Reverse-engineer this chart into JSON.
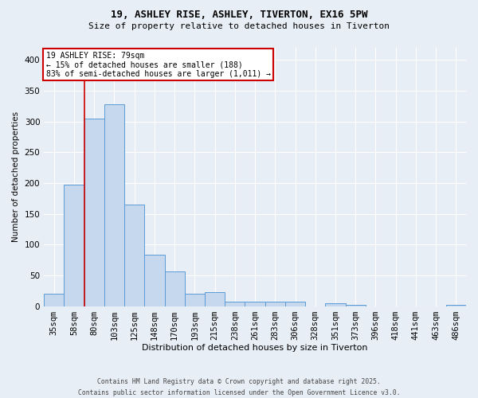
{
  "title_line1": "19, ASHLEY RISE, ASHLEY, TIVERTON, EX16 5PW",
  "title_line2": "Size of property relative to detached houses in Tiverton",
  "xlabel": "Distribution of detached houses by size in Tiverton",
  "ylabel": "Number of detached properties",
  "categories": [
    "35sqm",
    "58sqm",
    "80sqm",
    "103sqm",
    "125sqm",
    "148sqm",
    "170sqm",
    "193sqm",
    "215sqm",
    "238sqm",
    "261sqm",
    "283sqm",
    "306sqm",
    "328sqm",
    "351sqm",
    "373sqm",
    "396sqm",
    "418sqm",
    "441sqm",
    "463sqm",
    "486sqm"
  ],
  "values": [
    20,
    197,
    305,
    328,
    165,
    83,
    57,
    20,
    23,
    7,
    7,
    7,
    7,
    0,
    4,
    2,
    0,
    0,
    0,
    0,
    2
  ],
  "bar_color": "#c5d8ed",
  "bar_edge_color": "#5b9bd5",
  "red_line_index": 2,
  "annotation_title": "19 ASHLEY RISE: 79sqm",
  "annotation_line2": "← 15% of detached houses are smaller (188)",
  "annotation_line3": "83% of semi-detached houses are larger (1,011) →",
  "annotation_box_color": "#ffffff",
  "annotation_box_edge": "#cc0000",
  "background_color": "#e8eef5",
  "grid_color": "#ffffff",
  "footer_line1": "Contains HM Land Registry data © Crown copyright and database right 2025.",
  "footer_line2": "Contains public sector information licensed under the Open Government Licence v3.0.",
  "ylim": [
    0,
    420
  ],
  "yticks": [
    0,
    50,
    100,
    150,
    200,
    250,
    300,
    350,
    400
  ]
}
